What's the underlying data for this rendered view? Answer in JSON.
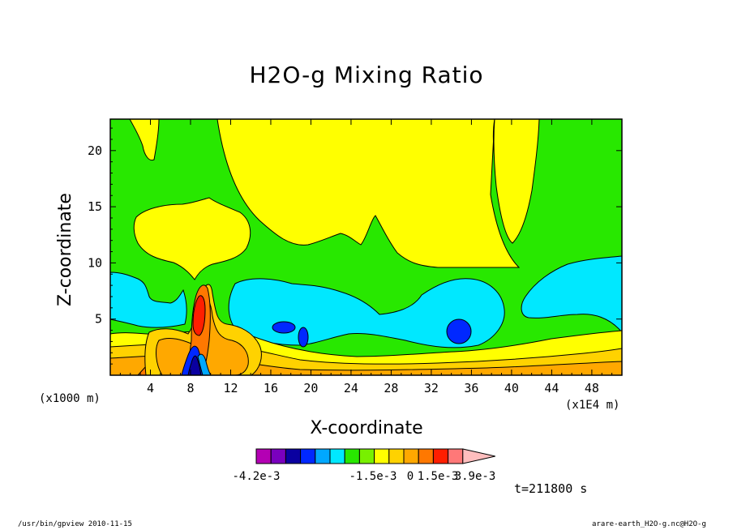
{
  "chart_data": {
    "type": "contour",
    "title": "H2O-g Mixing Ratio",
    "xlabel": "X-coordinate",
    "ylabel": "Z-coordinate",
    "x_unit_left": "(x1000 m)",
    "x_unit_right": "(x1E4 m)",
    "x_ticks": [
      "4",
      "8",
      "12",
      "16",
      "20",
      "24",
      "28",
      "32",
      "36",
      "40",
      "44",
      "48"
    ],
    "x_tick_values": [
      4,
      8,
      12,
      16,
      20,
      24,
      28,
      32,
      36,
      40,
      44,
      48
    ],
    "xlim": [
      0,
      51
    ],
    "y_ticks": [
      "5",
      "10",
      "15",
      "20"
    ],
    "y_tick_values": [
      5,
      10,
      15,
      20
    ],
    "ylim": [
      0,
      22.8
    ],
    "colorbar": {
      "colors": [
        "#b400b4",
        "#7a00be",
        "#0a00a0",
        "#0028ff",
        "#00a8ff",
        "#00e8ff",
        "#28e800",
        "#78f000",
        "#ffff00",
        "#ffd200",
        "#ffa800",
        "#ff7800",
        "#ff1e00",
        "#ff7878",
        "#ffbebe"
      ],
      "tick_labels": [
        "-4.2e-3",
        "-1.5e-3",
        "0",
        "1.5e-3",
        "3.9e-3"
      ]
    },
    "time_label": "t=211800 s"
  },
  "footer": {
    "left": "/usr/bin/gpview   2010-11-15",
    "right": "arare-earth_H2O-g.nc@H2O-g"
  }
}
